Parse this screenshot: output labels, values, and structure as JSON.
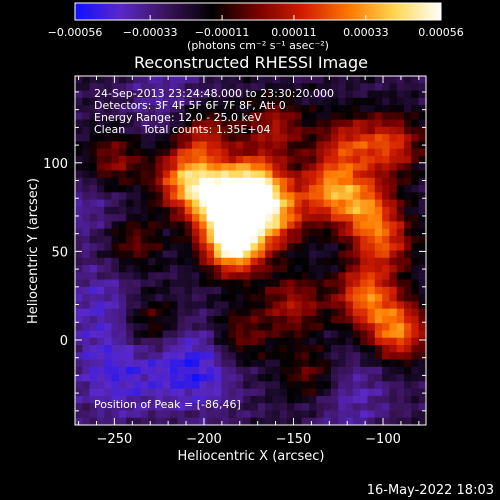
{
  "chart_data": {
    "type": "heatmap",
    "title": "Reconstructed RHESSI Image",
    "xlabel": "Heliocentric X (arcsec)",
    "ylabel": "Heliocentric Y (arcsec)",
    "xlim": [
      -272,
      -76
    ],
    "ylim": [
      -48,
      149
    ],
    "x_ticks": [
      -250,
      -200,
      -150,
      -100
    ],
    "y_ticks": [
      0,
      50,
      100
    ],
    "x_tick_labels": [
      "−250",
      "−200",
      "−150",
      "−100"
    ],
    "y_tick_labels": [
      "0",
      "50",
      "100"
    ],
    "colorbar": {
      "range": [
        -0.00056,
        0.00056
      ],
      "ticks": [
        -0.00056,
        -0.00033,
        -0.00011,
        0.00011,
        0.00033,
        0.00056
      ],
      "tick_labels": [
        "−0.00056",
        "−0.00033",
        "−0.00011",
        "0.00011",
        "0.00033",
        "0.00056"
      ],
      "unit_label": "(photons cm⁻² s⁻¹ asec⁻²)",
      "colors": [
        "#1010ff",
        "#5a28c8",
        "#3a145a",
        "#000000",
        "#7a0000",
        "#d21e00",
        "#ff7800",
        "#ffd850",
        "#ffffff"
      ]
    },
    "info_lines": [
      "24-Sep-2013 23:24:48.000 to 23:30:20.000",
      "Detectors: 3F 4F 5F 6F 7F 8F, Att 0",
      "Energy Range: 12.0 - 25.0 keV",
      "Clean     Total counts: 1.35E+04"
    ],
    "peak_label": "Position of Peak = [-86,46]",
    "sources": [
      {
        "x": -183,
        "y": 55,
        "intensity": 1.0
      },
      {
        "x": -190,
        "y": 78,
        "intensity": 0.85
      },
      {
        "x": -172,
        "y": 86,
        "intensity": 0.8
      },
      {
        "x": -210,
        "y": 90,
        "intensity": 0.65
      },
      {
        "x": -160,
        "y": 70,
        "intensity": 0.55
      },
      {
        "x": -130,
        "y": 85,
        "intensity": 0.55
      },
      {
        "x": -110,
        "y": 75,
        "intensity": 0.5
      },
      {
        "x": -95,
        "y": 110,
        "intensity": 0.45
      },
      {
        "x": -120,
        "y": 110,
        "intensity": 0.4
      },
      {
        "x": -100,
        "y": 55,
        "intensity": 0.45
      },
      {
        "x": -110,
        "y": 25,
        "intensity": 0.55
      },
      {
        "x": -92,
        "y": 5,
        "intensity": 0.6
      },
      {
        "x": -200,
        "y": 115,
        "intensity": 0.4
      },
      {
        "x": -250,
        "y": 100,
        "intensity": 0.35
      },
      {
        "x": -240,
        "y": 55,
        "intensity": 0.3
      },
      {
        "x": -230,
        "y": 10,
        "intensity": 0.3
      },
      {
        "x": -180,
        "y": 2,
        "intensity": 0.3
      },
      {
        "x": -140,
        "y": -20,
        "intensity": 0.3
      },
      {
        "x": -150,
        "y": 20,
        "intensity": 0.35
      },
      {
        "x": -160,
        "y": 120,
        "intensity": 0.35
      }
    ],
    "negative_regions": [
      {
        "x": -205,
        "y": -15,
        "intensity": 0.8
      },
      {
        "x": -250,
        "y": -20,
        "intensity": 0.6
      },
      {
        "x": -255,
        "y": 20,
        "intensity": 0.5
      },
      {
        "x": -120,
        "y": -30,
        "intensity": 0.5
      },
      {
        "x": -260,
        "y": 75,
        "intensity": 0.4
      },
      {
        "x": -220,
        "y": 135,
        "intensity": 0.4
      }
    ]
  },
  "footer_date": "16-May-2022 18:03"
}
